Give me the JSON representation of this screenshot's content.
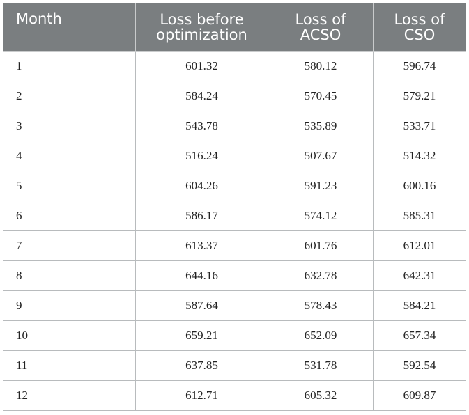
{
  "table": {
    "headers": [
      "Month",
      "Loss before optimization",
      "Loss of ACSO",
      "Loss of CSO"
    ],
    "rows": [
      [
        "1",
        "601.32",
        "580.12",
        "596.74"
      ],
      [
        "2",
        "584.24",
        "570.45",
        "579.21"
      ],
      [
        "3",
        "543.78",
        "535.89",
        "533.71"
      ],
      [
        "4",
        "516.24",
        "507.67",
        "514.32"
      ],
      [
        "5",
        "604.26",
        "591.23",
        "600.16"
      ],
      [
        "6",
        "586.17",
        "574.12",
        "585.31"
      ],
      [
        "7",
        "613.37",
        "601.76",
        "612.01"
      ],
      [
        "8",
        "644.16",
        "632.78",
        "642.31"
      ],
      [
        "9",
        "587.64",
        "578.43",
        "584.21"
      ],
      [
        "10",
        "659.21",
        "652.09",
        "657.34"
      ],
      [
        "11",
        "637.85",
        "531.78",
        "592.54"
      ],
      [
        "12",
        "612.71",
        "605.32",
        "609.87"
      ]
    ]
  },
  "colors": {
    "header_bg": "#7a7e80",
    "header_text": "#ffffff",
    "grid": "#b8bbbd"
  }
}
